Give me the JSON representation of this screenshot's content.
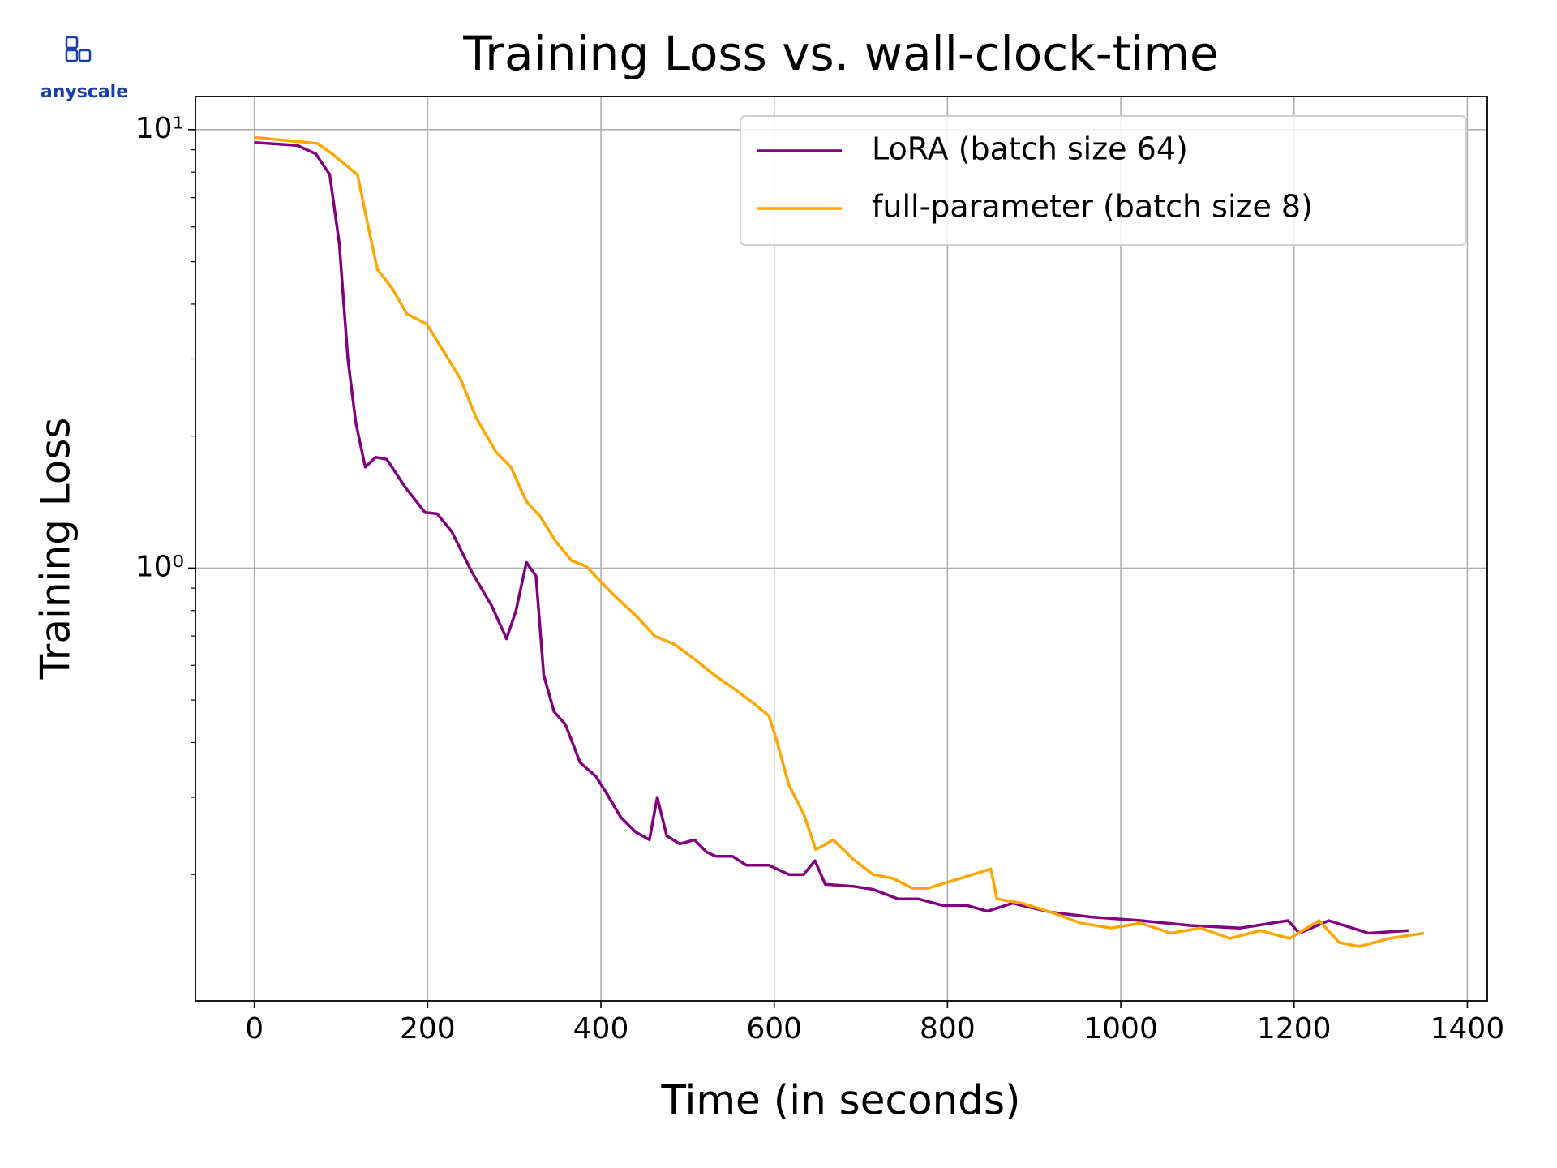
{
  "logo": "anyscale",
  "chart_data": {
    "type": "line",
    "title": "Training Loss vs. wall-clock-time",
    "xlabel": "Time (in seconds)",
    "ylabel": "Training Loss",
    "xlim": [
      -68,
      1423
    ],
    "xticks": [
      0,
      200,
      400,
      600,
      800,
      1000,
      1200,
      1400
    ],
    "ylim": [
      0.103,
      11.9
    ],
    "log_y": true,
    "yticks": [
      {
        "value": 1,
        "label": "10⁰"
      },
      {
        "value": 10,
        "label": "10¹"
      }
    ],
    "grid": true,
    "legend": "upper right",
    "series": [
      {
        "name": "LoRA (batch size 64)",
        "color": "#800080",
        "x": [
          0,
          50,
          71,
          87,
          98,
          108,
          117,
          128,
          140,
          153,
          174,
          197,
          211,
          228,
          251,
          274,
          291,
          302,
          314,
          325,
          334,
          346,
          359,
          376,
          394,
          405,
          423,
          440,
          456,
          465,
          476,
          491,
          508,
          522,
          533,
          552,
          568,
          594,
          617,
          634,
          647,
          659,
          691,
          714,
          743,
          766,
          795,
          823,
          846,
          875,
          920,
          966,
          1023,
          1081,
          1138,
          1193,
          1206,
          1240,
          1286,
          1332
        ],
        "values": [
          9.35,
          9.2,
          8.8,
          7.9,
          5.5,
          3.0,
          2.15,
          1.7,
          1.79,
          1.77,
          1.53,
          1.34,
          1.33,
          1.21,
          0.98,
          0.82,
          0.69,
          0.8,
          1.03,
          0.96,
          0.57,
          0.47,
          0.44,
          0.36,
          0.335,
          0.31,
          0.27,
          0.25,
          0.24,
          0.3,
          0.245,
          0.235,
          0.24,
          0.225,
          0.22,
          0.22,
          0.21,
          0.21,
          0.2,
          0.2,
          0.215,
          0.19,
          0.188,
          0.185,
          0.176,
          0.176,
          0.17,
          0.17,
          0.165,
          0.172,
          0.164,
          0.16,
          0.157,
          0.153,
          0.151,
          0.157,
          0.147,
          0.157,
          0.147,
          0.149
        ]
      },
      {
        "name": "full-parameter (batch size 8)",
        "color": "#ffa500",
        "x": [
          0,
          73,
          90,
          119,
          133,
          142,
          159,
          176,
          199,
          215,
          238,
          256,
          279,
          296,
          314,
          330,
          348,
          366,
          383,
          400,
          417,
          440,
          462,
          485,
          508,
          531,
          554,
          577,
          594,
          602,
          617,
          634,
          648,
          668,
          691,
          714,
          737,
          760,
          777,
          850,
          857,
          886,
          920,
          954,
          989,
          1023,
          1058,
          1092,
          1126,
          1161,
          1195,
          1229,
          1252,
          1275,
          1310,
          1350
        ],
        "values": [
          9.6,
          9.3,
          8.8,
          7.9,
          5.8,
          4.8,
          4.35,
          3.8,
          3.6,
          3.2,
          2.7,
          2.2,
          1.84,
          1.7,
          1.42,
          1.31,
          1.15,
          1.04,
          1.01,
          0.93,
          0.86,
          0.78,
          0.7,
          0.67,
          0.62,
          0.57,
          0.53,
          0.49,
          0.46,
          0.41,
          0.32,
          0.275,
          0.228,
          0.24,
          0.217,
          0.2,
          0.196,
          0.186,
          0.186,
          0.206,
          0.176,
          0.172,
          0.164,
          0.155,
          0.151,
          0.155,
          0.147,
          0.151,
          0.143,
          0.149,
          0.143,
          0.157,
          0.14,
          0.137,
          0.143,
          0.147
        ]
      }
    ]
  }
}
